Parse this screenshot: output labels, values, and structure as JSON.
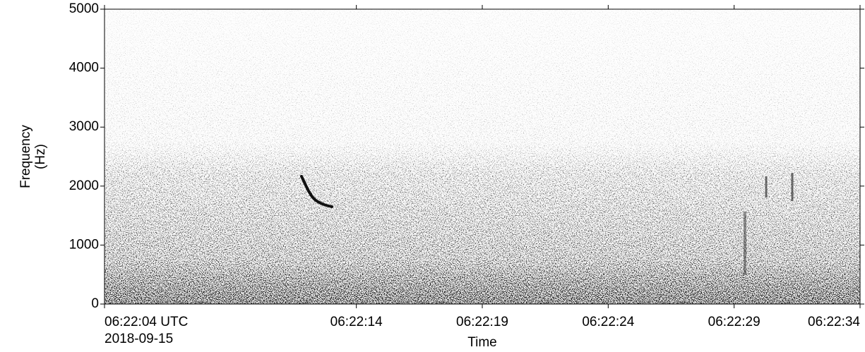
{
  "chart_data": {
    "type": "spectrogram",
    "ylabel": [
      "Frequency",
      "(Hz)"
    ],
    "xlabel": "Time",
    "start_date": "2018-09-15",
    "ylim": [
      0,
      5000
    ],
    "yticks": [
      0,
      1000,
      2000,
      3000,
      4000,
      5000
    ],
    "xlim": [
      "06:22:04",
      "06:22:34"
    ],
    "xticks": [
      {
        "value": "06:22:04",
        "label": "06:22:04 UTC"
      },
      "06:22:14",
      "06:22:19",
      "06:22:24",
      "06:22:29",
      "06:22:34"
    ]
  }
}
